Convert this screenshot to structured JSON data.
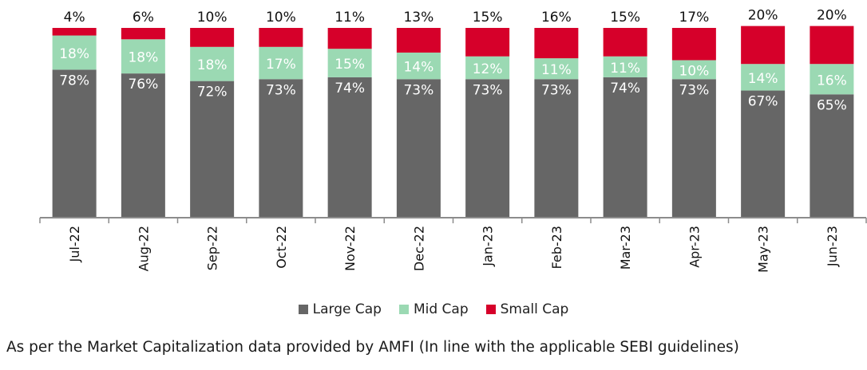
{
  "chart_data": {
    "type": "bar",
    "stacked": true,
    "percent": true,
    "categories": [
      "Jul-22",
      "Aug-22",
      "Sep-22",
      "Oct-22",
      "Nov-22",
      "Dec-22",
      "Jan-23",
      "Feb-23",
      "Mar-23",
      "Apr-23",
      "May-23",
      "Jun-23"
    ],
    "series": [
      {
        "name": "Large Cap",
        "color": "#666666",
        "values": [
          78,
          76,
          72,
          73,
          74,
          73,
          73,
          73,
          74,
          73,
          67,
          65
        ]
      },
      {
        "name": "Mid Cap",
        "color": "#9bd9b3",
        "values": [
          18,
          18,
          18,
          17,
          15,
          14,
          12,
          11,
          11,
          10,
          14,
          16
        ]
      },
      {
        "name": "Small Cap",
        "color": "#d6002a",
        "values": [
          4,
          6,
          10,
          10,
          11,
          13,
          15,
          16,
          15,
          17,
          20,
          20
        ]
      }
    ],
    "ylim": [
      0,
      100
    ],
    "legend_position": "bottom",
    "grid": false
  },
  "footnote": "As per the Market Capitalization data provided by AMFI (In line with the applicable SEBI guidelines)"
}
